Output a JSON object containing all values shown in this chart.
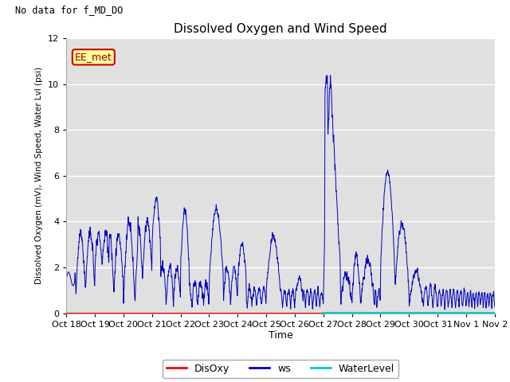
{
  "title": "Dissolved Oxygen and Wind Speed",
  "no_data_text": "No data for f_MD_DO",
  "station_label": "EE_met",
  "ylabel": "Dissolved Oxygen (mV), Wind Speed, Water Lvl (psi)",
  "xlabel": "Time",
  "ylim": [
    0,
    12
  ],
  "bg_color": "#e0e0e0",
  "legend_items": [
    "DisOxy",
    "ws",
    "WaterLevel"
  ],
  "legend_colors": [
    "#ff0000",
    "#0000cc",
    "#00cccc"
  ],
  "disoxy_color": "#ff0000",
  "ws_color": "#0000bb",
  "water_color": "#00cccc",
  "x_tick_labels": [
    "Oct 18",
    "Oct 19",
    "Oct 20",
    "Oct 21",
    "Oct 22",
    "Oct 23",
    "Oct 24",
    "Oct 25",
    "Oct 26",
    "Oct 27",
    "Oct 28",
    "Oct 29",
    "Oct 30",
    "Oct 31",
    "Nov 1",
    "Nov 2"
  ],
  "x_tick_positions": [
    0,
    1,
    2,
    3,
    4,
    5,
    6,
    7,
    8,
    9,
    10,
    11,
    12,
    13,
    14,
    15
  ]
}
